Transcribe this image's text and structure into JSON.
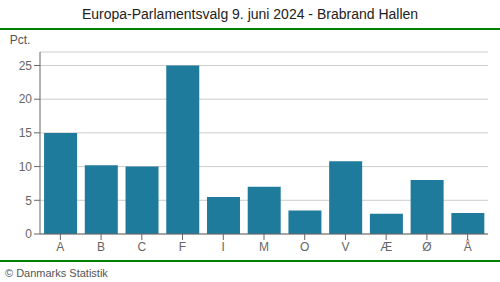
{
  "chart_data": {
    "type": "bar",
    "title": "Europa-Parlamentsvalg 9. juni 2024 - Brabrand Hallen",
    "categories": [
      "A",
      "B",
      "C",
      "F",
      "I",
      "M",
      "O",
      "V",
      "Æ",
      "Ø",
      "Å"
    ],
    "values": [
      15.0,
      10.2,
      10.0,
      25.0,
      5.5,
      7.0,
      3.5,
      10.8,
      3.0,
      8.0,
      3.1
    ],
    "color": "#1e7b9b",
    "ylabel": "Pct.",
    "ylim": [
      0,
      27
    ],
    "yticks": [
      0,
      5,
      10,
      15,
      20,
      25
    ],
    "grid": true,
    "annotations": [
      "© Danmarks Statistik"
    ]
  }
}
